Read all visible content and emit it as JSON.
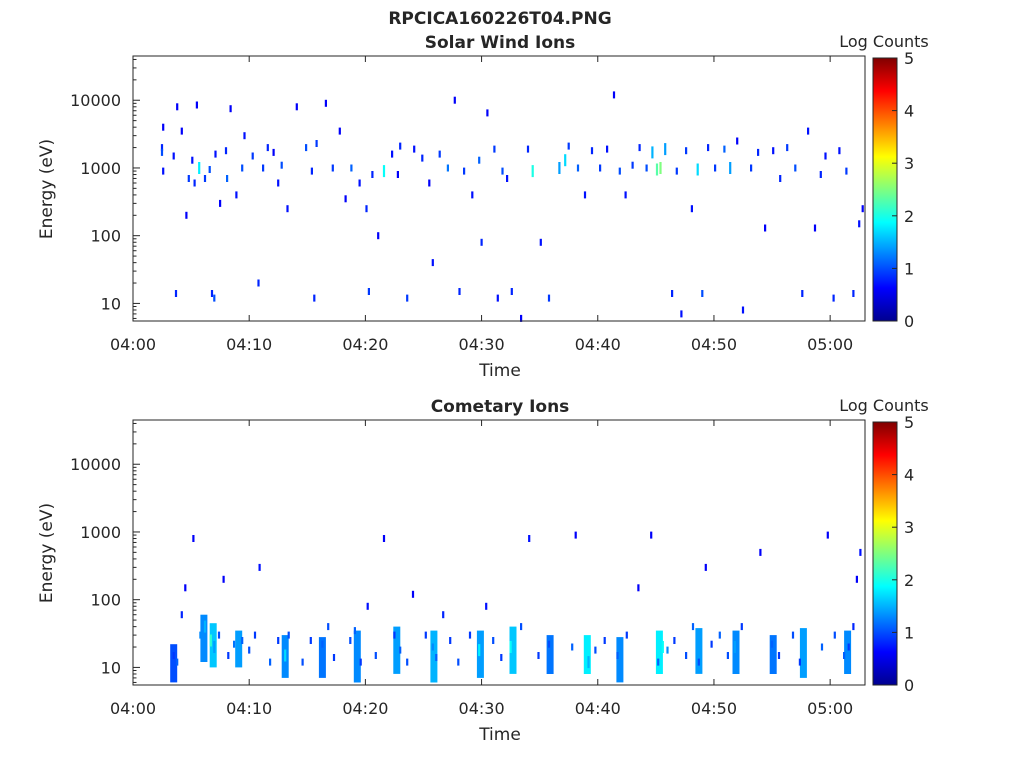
{
  "figure_title": "RPCICA160226T04.PNG",
  "colors": {
    "axis": "#262626",
    "colormap": "jet"
  },
  "chart_data": [
    {
      "type": "heatmap",
      "title": "Solar Wind Ions",
      "xlabel": "Time",
      "ylabel": "Energy (eV)",
      "x_ticks": [
        "04:00",
        "04:10",
        "04:20",
        "04:30",
        "04:40",
        "04:50",
        "05:00"
      ],
      "x_range_minutes": [
        0,
        63
      ],
      "y_ticks": [
        "10",
        "100",
        "1000",
        "10000"
      ],
      "y_range": [
        5.5,
        45000
      ],
      "y_scale": "log",
      "grid": false,
      "colorbar": {
        "label": "Log Counts",
        "ticks": [
          "0",
          "1",
          "2",
          "3",
          "4",
          "5"
        ],
        "range": [
          0,
          5
        ]
      },
      "cells": [
        [
          2.5,
          2000,
          0.3
        ],
        [
          2.5,
          1700,
          0.5
        ],
        [
          2.6,
          900,
          0.2
        ],
        [
          2.6,
          4000,
          0.1
        ],
        [
          3.5,
          1500,
          0.2
        ],
        [
          3.7,
          14,
          0.3
        ],
        [
          3.8,
          8000,
          0.1
        ],
        [
          4.2,
          3500,
          0.1
        ],
        [
          4.6,
          200,
          0.1
        ],
        [
          4.8,
          700,
          0.4
        ],
        [
          5.1,
          1300,
          0.2
        ],
        [
          5.3,
          600,
          0.3
        ],
        [
          5.5,
          8500,
          0.1
        ],
        [
          5.7,
          1000,
          1.3
        ],
        [
          6.2,
          700,
          0.4
        ],
        [
          6.6,
          950,
          0.5
        ],
        [
          6.8,
          14,
          0.3
        ],
        [
          7.0,
          12,
          0.5
        ],
        [
          7.1,
          1600,
          0.2
        ],
        [
          7.5,
          300,
          0.1
        ],
        [
          8.0,
          1800,
          0.3
        ],
        [
          8.1,
          700,
          0.6
        ],
        [
          8.4,
          7500,
          0.1
        ],
        [
          8.9,
          400,
          0.2
        ],
        [
          9.4,
          1000,
          0.5
        ],
        [
          9.6,
          3000,
          0.2
        ],
        [
          10.3,
          1500,
          0.4
        ],
        [
          10.8,
          20,
          0.3
        ],
        [
          11.2,
          1000,
          0.4
        ],
        [
          11.6,
          2000,
          0.3
        ],
        [
          12.1,
          1700,
          0.1
        ],
        [
          12.5,
          600,
          0.2
        ],
        [
          12.8,
          1100,
          0.5
        ],
        [
          13.3,
          250,
          0.2
        ],
        [
          14.1,
          8000,
          0.1
        ],
        [
          14.9,
          2000,
          0.5
        ],
        [
          15.4,
          900,
          0.3
        ],
        [
          15.6,
          12,
          0.3
        ],
        [
          15.8,
          2300,
          0.4
        ],
        [
          16.6,
          9000,
          0.1
        ],
        [
          17.2,
          1000,
          0.4
        ],
        [
          17.8,
          3500,
          0.1
        ],
        [
          18.3,
          350,
          0.1
        ],
        [
          18.8,
          1000,
          0.6
        ],
        [
          19.5,
          600,
          0.2
        ],
        [
          20.1,
          250,
          0.3
        ],
        [
          20.3,
          15,
          0.4
        ],
        [
          20.6,
          800,
          0.3
        ],
        [
          21.1,
          100,
          0.1
        ],
        [
          21.6,
          900,
          1.4
        ],
        [
          22.3,
          1600,
          0.2
        ],
        [
          22.8,
          800,
          0.1
        ],
        [
          23.0,
          2100,
          0.3
        ],
        [
          23.6,
          12,
          0.4
        ],
        [
          24.2,
          1900,
          0.2
        ],
        [
          24.9,
          1400,
          0.3
        ],
        [
          25.5,
          600,
          0.1
        ],
        [
          25.8,
          40,
          0.2
        ],
        [
          26.4,
          1600,
          0.4
        ],
        [
          27.1,
          1000,
          0.7
        ],
        [
          27.7,
          10000,
          0.1
        ],
        [
          28.1,
          15,
          0.3
        ],
        [
          28.5,
          900,
          0.4
        ],
        [
          29.2,
          400,
          0.2
        ],
        [
          29.8,
          1300,
          0.6
        ],
        [
          30.0,
          80,
          0.3
        ],
        [
          30.5,
          6500,
          0.1
        ],
        [
          31.1,
          1900,
          0.4
        ],
        [
          31.4,
          12,
          0.2
        ],
        [
          31.8,
          900,
          0.5
        ],
        [
          32.2,
          700,
          0.2
        ],
        [
          32.6,
          15,
          0.3
        ],
        [
          33.4,
          6,
          0.1
        ],
        [
          34.0,
          1900,
          0.3
        ],
        [
          34.4,
          900,
          1.5
        ],
        [
          35.1,
          80,
          0.2
        ],
        [
          35.8,
          12,
          0.4
        ],
        [
          36.7,
          1000,
          0.9
        ],
        [
          37.2,
          1300,
          1.2
        ],
        [
          37.5,
          2100,
          0.4
        ],
        [
          38.3,
          1000,
          0.6
        ],
        [
          38.9,
          400,
          0.2
        ],
        [
          39.5,
          1800,
          0.3
        ],
        [
          40.2,
          1000,
          0.4
        ],
        [
          40.8,
          1900,
          0.2
        ],
        [
          41.4,
          12000,
          0.1
        ],
        [
          41.9,
          900,
          0.5
        ],
        [
          42.4,
          400,
          0.2
        ],
        [
          43.0,
          1100,
          0.4
        ],
        [
          43.6,
          2000,
          0.3
        ],
        [
          44.2,
          1000,
          0.5
        ],
        [
          44.7,
          1700,
          1.0
        ],
        [
          45.1,
          950,
          1.8
        ],
        [
          45.4,
          1000,
          2.0
        ],
        [
          45.8,
          1900,
          0.9
        ],
        [
          46.4,
          14,
          0.3
        ],
        [
          46.8,
          900,
          0.4
        ],
        [
          47.2,
          7,
          0.2
        ],
        [
          47.6,
          1800,
          0.4
        ],
        [
          48.1,
          250,
          0.2
        ],
        [
          48.6,
          950,
          1.2
        ],
        [
          49.0,
          14,
          0.5
        ],
        [
          49.5,
          2000,
          0.3
        ],
        [
          50.1,
          1000,
          0.4
        ],
        [
          50.9,
          1900,
          0.6
        ],
        [
          51.4,
          1000,
          0.9
        ],
        [
          52.0,
          2500,
          0.1
        ],
        [
          52.5,
          8,
          0.2
        ],
        [
          53.2,
          1000,
          0.4
        ],
        [
          53.8,
          1700,
          0.3
        ],
        [
          54.4,
          130,
          0.1
        ],
        [
          55.1,
          1800,
          0.2
        ],
        [
          55.7,
          700,
          0.3
        ],
        [
          56.3,
          2000,
          0.4
        ],
        [
          57.0,
          1000,
          0.5
        ],
        [
          57.6,
          14,
          0.3
        ],
        [
          58.1,
          3500,
          0.2
        ],
        [
          58.7,
          130,
          0.1
        ],
        [
          59.2,
          800,
          0.3
        ],
        [
          59.6,
          1500,
          0.2
        ],
        [
          60.3,
          12,
          0.3
        ],
        [
          60.8,
          1800,
          0.2
        ],
        [
          61.4,
          900,
          0.4
        ],
        [
          62.0,
          14,
          0.3
        ],
        [
          62.5,
          150,
          0.2
        ],
        [
          62.8,
          250,
          0.1
        ]
      ]
    },
    {
      "type": "heatmap",
      "title": "Cometary Ions",
      "xlabel": "Time",
      "ylabel": "Energy (eV)",
      "x_ticks": [
        "04:00",
        "04:10",
        "04:20",
        "04:30",
        "04:40",
        "04:50",
        "05:00"
      ],
      "x_range_minutes": [
        0,
        63
      ],
      "y_ticks": [
        "10",
        "100",
        "1000",
        "10000"
      ],
      "y_range": [
        5.5,
        45000
      ],
      "y_scale": "log",
      "grid": false,
      "colorbar": {
        "label": "Log Counts",
        "ticks": [
          "0",
          "1",
          "2",
          "3",
          "4",
          "5"
        ],
        "range": [
          0,
          5
        ]
      },
      "cells": [
        [
          3.5,
          15,
          0.4
        ],
        [
          3.8,
          12,
          0.6
        ],
        [
          4.2,
          60,
          0.3
        ],
        [
          4.5,
          150,
          0.1
        ],
        [
          5.2,
          800,
          0.1
        ],
        [
          5.8,
          30,
          0.8
        ],
        [
          6.2,
          40,
          1.0
        ],
        [
          6.7,
          25,
          1.6
        ],
        [
          7.0,
          20,
          0.9
        ],
        [
          7.4,
          30,
          0.5
        ],
        [
          7.8,
          200,
          0.1
        ],
        [
          8.2,
          15,
          0.4
        ],
        [
          8.7,
          22,
          0.7
        ],
        [
          9.4,
          25,
          0.6
        ],
        [
          10.0,
          18,
          0.5
        ],
        [
          10.5,
          30,
          0.4
        ],
        [
          10.9,
          300,
          0.2
        ],
        [
          11.8,
          12,
          0.6
        ],
        [
          12.5,
          25,
          0.4
        ],
        [
          13.1,
          15,
          1.2
        ],
        [
          13.4,
          30,
          0.5
        ],
        [
          14.6,
          12,
          0.5
        ],
        [
          15.3,
          25,
          0.4
        ],
        [
          16.3,
          22,
          0.6
        ],
        [
          16.8,
          40,
          0.5
        ],
        [
          17.3,
          14,
          0.4
        ],
        [
          18.7,
          25,
          0.5
        ],
        [
          19.1,
          35,
          0.6
        ],
        [
          19.6,
          12,
          0.4
        ],
        [
          20.2,
          80,
          0.2
        ],
        [
          20.9,
          15,
          0.5
        ],
        [
          21.6,
          800,
          0.1
        ],
        [
          22.5,
          30,
          0.4
        ],
        [
          23.0,
          18,
          0.6
        ],
        [
          23.6,
          12,
          0.5
        ],
        [
          24.1,
          120,
          0.1
        ],
        [
          25.2,
          30,
          0.4
        ],
        [
          25.8,
          20,
          0.8
        ],
        [
          26.1,
          14,
          0.6
        ],
        [
          26.7,
          60,
          0.3
        ],
        [
          27.3,
          25,
          0.4
        ],
        [
          28.0,
          12,
          0.5
        ],
        [
          29.0,
          30,
          0.4
        ],
        [
          29.8,
          18,
          1.3
        ],
        [
          30.4,
          80,
          0.2
        ],
        [
          31.0,
          25,
          0.5
        ],
        [
          31.7,
          14,
          0.4
        ],
        [
          32.5,
          20,
          1.4
        ],
        [
          33.4,
          40,
          0.5
        ],
        [
          34.1,
          800,
          0.2
        ],
        [
          34.9,
          15,
          0.4
        ],
        [
          35.8,
          22,
          0.5
        ],
        [
          37.8,
          20,
          0.6
        ],
        [
          38.1,
          900,
          0.1
        ],
        [
          39.2,
          12,
          1.0
        ],
        [
          39.8,
          18,
          0.5
        ],
        [
          40.6,
          25,
          0.4
        ],
        [
          41.7,
          15,
          0.6
        ],
        [
          42.5,
          30,
          0.4
        ],
        [
          43.5,
          150,
          0.1
        ],
        [
          44.6,
          900,
          0.1
        ],
        [
          45.2,
          12,
          0.6
        ],
        [
          45.6,
          20,
          1.4
        ],
        [
          46.0,
          18,
          0.8
        ],
        [
          46.6,
          25,
          0.4
        ],
        [
          47.6,
          15,
          0.5
        ],
        [
          48.2,
          40,
          0.6
        ],
        [
          48.7,
          12,
          0.5
        ],
        [
          49.3,
          300,
          0.1
        ],
        [
          49.8,
          22,
          0.4
        ],
        [
          50.5,
          30,
          0.6
        ],
        [
          51.2,
          15,
          0.5
        ],
        [
          51.8,
          20,
          0.9
        ],
        [
          52.4,
          40,
          0.4
        ],
        [
          54.0,
          500,
          0.1
        ],
        [
          55.0,
          22,
          0.6
        ],
        [
          55.6,
          15,
          0.4
        ],
        [
          56.8,
          30,
          0.5
        ],
        [
          57.4,
          12,
          0.4
        ],
        [
          59.3,
          20,
          0.6
        ],
        [
          59.8,
          900,
          0.1
        ],
        [
          60.4,
          30,
          0.5
        ],
        [
          61.2,
          15,
          0.6
        ],
        [
          61.6,
          20,
          0.4
        ],
        [
          62.0,
          40,
          0.3
        ],
        [
          62.3,
          200,
          0.1
        ],
        [
          62.6,
          500,
          0.2
        ]
      ],
      "bands": [
        [
          3.2,
          3.8,
          6,
          22,
          0.5
        ],
        [
          5.8,
          6.4,
          12,
          60,
          0.8
        ],
        [
          6.6,
          7.2,
          10,
          45,
          1.1
        ],
        [
          8.8,
          9.4,
          10,
          35,
          0.9
        ],
        [
          12.8,
          13.4,
          7,
          30,
          0.8
        ],
        [
          16.0,
          16.6,
          7,
          28,
          0.7
        ],
        [
          19.0,
          19.6,
          6,
          35,
          0.8
        ],
        [
          22.4,
          23.0,
          8,
          40,
          0.9
        ],
        [
          25.6,
          26.2,
          6,
          35,
          1.0
        ],
        [
          29.6,
          30.2,
          7,
          35,
          0.9
        ],
        [
          32.4,
          33.0,
          8,
          40,
          1.1
        ],
        [
          35.6,
          36.2,
          8,
          30,
          0.7
        ],
        [
          38.8,
          39.4,
          8,
          30,
          1.3
        ],
        [
          41.6,
          42.2,
          6,
          28,
          0.8
        ],
        [
          45.0,
          45.6,
          8,
          35,
          1.3
        ],
        [
          48.4,
          49.0,
          8,
          38,
          0.9
        ],
        [
          51.6,
          52.2,
          8,
          35,
          0.8
        ],
        [
          54.8,
          55.4,
          8,
          30,
          0.7
        ],
        [
          57.4,
          58.0,
          7,
          38,
          0.9
        ],
        [
          61.2,
          61.8,
          8,
          35,
          0.8
        ]
      ]
    }
  ]
}
